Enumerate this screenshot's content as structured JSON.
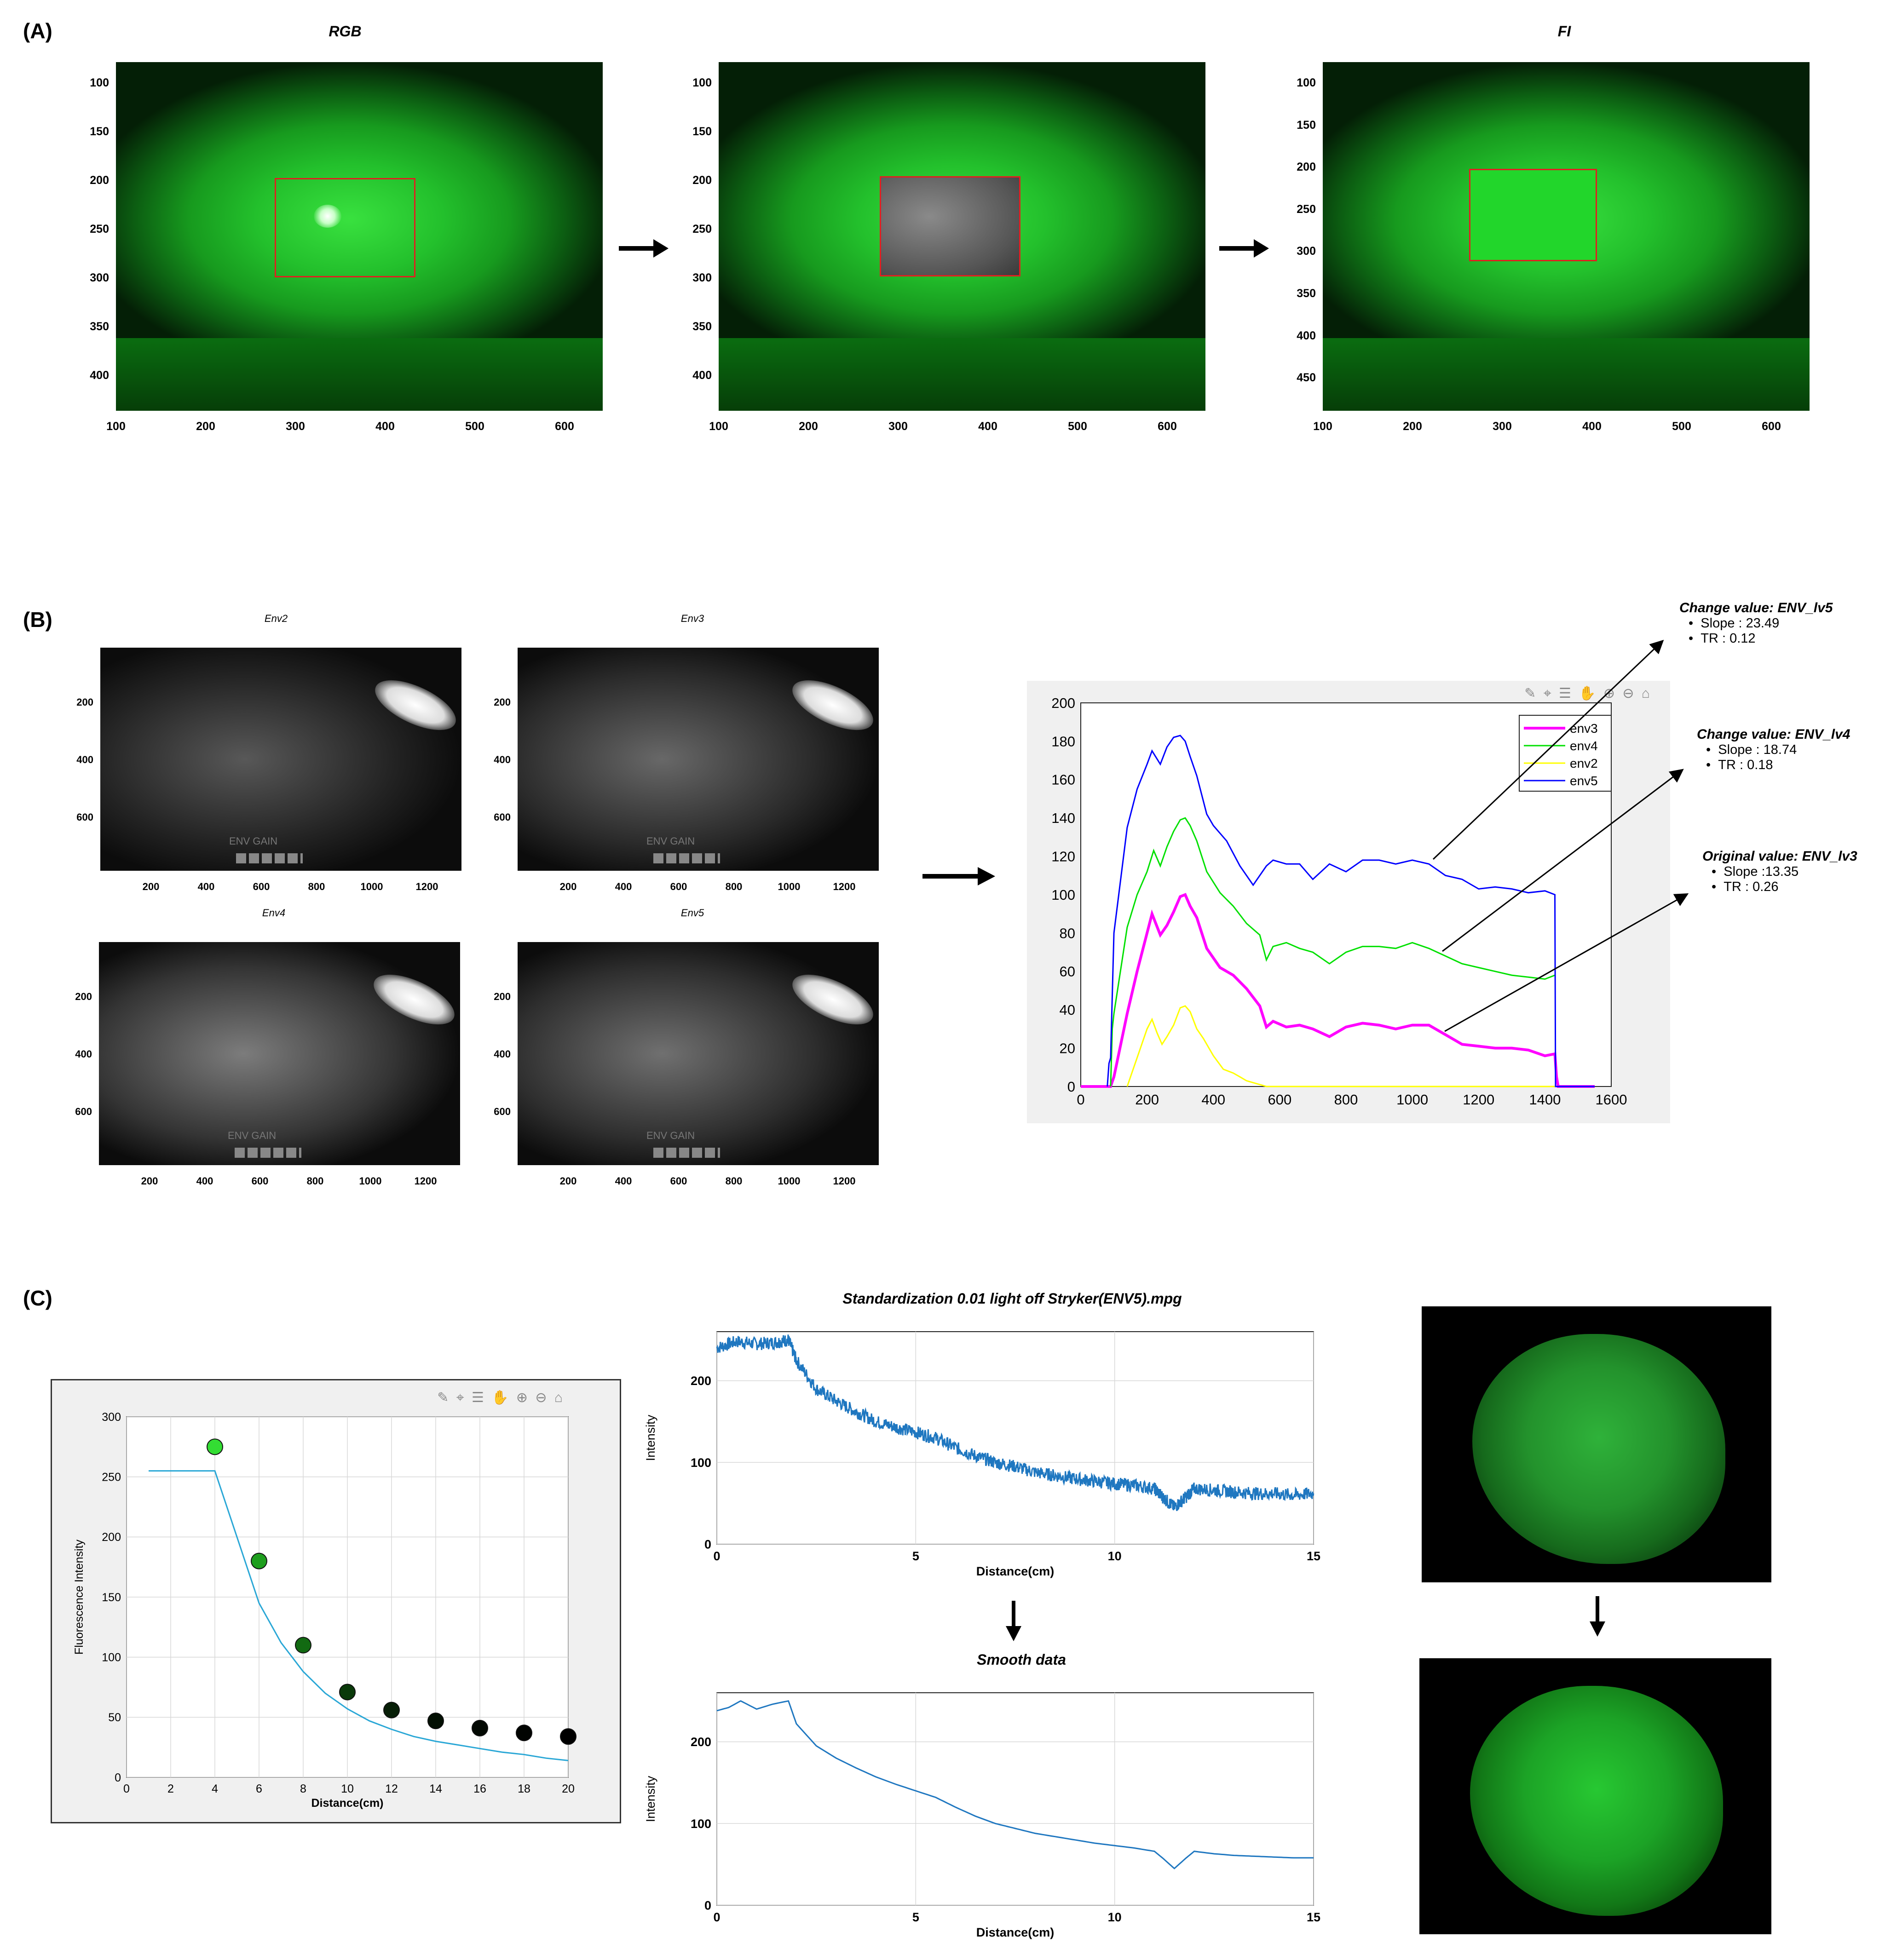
{
  "panels": {
    "a": {
      "label": "(A)",
      "images": [
        {
          "title": "RGB",
          "yticks": [
            "100",
            "150",
            "200",
            "250",
            "300",
            "350",
            "400"
          ],
          "xticks": [
            "100",
            "200",
            "300",
            "400",
            "500",
            "600"
          ]
        },
        {
          "title": "",
          "yticks": [
            "100",
            "150",
            "200",
            "250",
            "300",
            "350",
            "400"
          ],
          "xticks": [
            "100",
            "200",
            "300",
            "400",
            "500",
            "600"
          ]
        },
        {
          "title": "FI",
          "yticks": [
            "100",
            "150",
            "200",
            "250",
            "300",
            "350",
            "400",
            "450"
          ],
          "xticks": [
            "100",
            "200",
            "300",
            "400",
            "500",
            "600"
          ]
        }
      ]
    },
    "b": {
      "label": "(B)",
      "images": [
        {
          "title": "Env2",
          "yticks": [
            "200",
            "400",
            "600"
          ],
          "xticks": [
            "200",
            "400",
            "600",
            "800",
            "1000",
            "1200"
          ],
          "overlay": "ENV GAIN"
        },
        {
          "title": "Env3",
          "yticks": [
            "200",
            "400",
            "600"
          ],
          "xticks": [
            "200",
            "400",
            "600",
            "800",
            "1000",
            "1200"
          ],
          "overlay": "ENV GAIN"
        },
        {
          "title": "Env4",
          "yticks": [
            "200",
            "400",
            "600"
          ],
          "xticks": [
            "200",
            "400",
            "600",
            "800",
            "1000",
            "1200"
          ],
          "overlay": "ENV GAIN"
        },
        {
          "title": "Env5",
          "yticks": [
            "200",
            "400",
            "600"
          ],
          "xticks": [
            "200",
            "400",
            "600",
            "800",
            "1000",
            "1200"
          ],
          "overlay": "ENV GAIN"
        }
      ],
      "notes": [
        {
          "title": "Change value: ENV_lv5",
          "items": [
            "Slope : 23.49",
            "TR : 0.12"
          ]
        },
        {
          "title": "Change value: ENV_lv4",
          "items": [
            "Slope : 18.74",
            "TR : 0.18"
          ]
        },
        {
          "title": "Original value: ENV_lv3",
          "items": [
            "Slope :13.35",
            "TR : 0.26"
          ]
        }
      ]
    },
    "c": {
      "label": "(C)",
      "profile_title": "Standardization 0.01 light off Stryker(ENV5).mpg",
      "smooth_title": "Smooth data"
    }
  },
  "chart_data": [
    {
      "id": "env_profiles",
      "type": "line",
      "xlim": [
        0,
        1600
      ],
      "ylim": [
        0,
        200
      ],
      "xticks": [
        0,
        200,
        400,
        600,
        800,
        1000,
        1200,
        1400,
        1600
      ],
      "yticks": [
        0,
        20,
        40,
        60,
        80,
        100,
        120,
        140,
        160,
        180,
        200
      ],
      "legend": "top-right",
      "series": [
        {
          "name": "env3",
          "color": "#ff00ff",
          "x": [
            0,
            80,
            90,
            100,
            140,
            170,
            200,
            215,
            240,
            260,
            280,
            300,
            315,
            330,
            350,
            380,
            420,
            460,
            500,
            540,
            560,
            580,
            620,
            660,
            700,
            750,
            800,
            850,
            900,
            950,
            1000,
            1050,
            1100,
            1150,
            1200,
            1250,
            1300,
            1350,
            1400,
            1430,
            1435,
            1440,
            1550
          ],
          "y": [
            0,
            0,
            0,
            5,
            38,
            60,
            80,
            90,
            79,
            84,
            91,
            99,
            100,
            94,
            88,
            72,
            62,
            58,
            51,
            42,
            31,
            34,
            31,
            32,
            30,
            26,
            31,
            33,
            32,
            30,
            32,
            32,
            27,
            22,
            21,
            20,
            20,
            19,
            16,
            17,
            5,
            0,
            0
          ]
        },
        {
          "name": "env4",
          "color": "#00e000",
          "x": [
            90,
            95,
            100,
            140,
            170,
            200,
            220,
            240,
            260,
            280,
            300,
            315,
            330,
            350,
            380,
            420,
            460,
            500,
            540,
            560,
            580,
            620,
            660,
            700,
            750,
            800,
            850,
            900,
            950,
            1000,
            1050,
            1100,
            1150,
            1200,
            1250,
            1300,
            1350,
            1400,
            1430
          ],
          "y": [
            0,
            30,
            38,
            83,
            100,
            112,
            123,
            115,
            125,
            133,
            139,
            140,
            136,
            128,
            112,
            101,
            94,
            85,
            79,
            66,
            73,
            75,
            72,
            70,
            64,
            70,
            73,
            73,
            72,
            75,
            72,
            68,
            64,
            62,
            60,
            58,
            57,
            56,
            58
          ]
        },
        {
          "name": "env2",
          "color": "#ffff00",
          "x": [
            140,
            150,
            170,
            200,
            215,
            230,
            245,
            260,
            280,
            300,
            315,
            330,
            350,
            370,
            400,
            430,
            460,
            480,
            500,
            520,
            540,
            560,
            600,
            1000,
            1440
          ],
          "y": [
            0,
            5,
            15,
            30,
            35,
            28,
            22,
            26,
            32,
            41,
            42,
            39,
            30,
            25,
            16,
            9,
            7,
            5,
            3,
            2,
            1,
            0,
            0,
            0,
            0
          ]
        },
        {
          "name": "env5",
          "color": "#0000ff",
          "x": [
            80,
            85,
            90,
            100,
            140,
            170,
            200,
            215,
            240,
            260,
            280,
            300,
            315,
            330,
            350,
            380,
            400,
            440,
            480,
            520,
            560,
            580,
            620,
            660,
            700,
            750,
            800,
            850,
            900,
            950,
            1000,
            1050,
            1100,
            1150,
            1200,
            1250,
            1300,
            1350,
            1400,
            1430,
            1432,
            1440,
            1550
          ],
          "y": [
            0,
            12,
            15,
            80,
            135,
            155,
            168,
            175,
            168,
            177,
            182,
            183,
            180,
            172,
            162,
            142,
            136,
            128,
            115,
            105,
            115,
            118,
            116,
            116,
            108,
            116,
            112,
            118,
            118,
            116,
            118,
            116,
            110,
            108,
            103,
            104,
            103,
            101,
            102,
            100,
            0,
            0,
            0
          ]
        }
      ]
    },
    {
      "id": "fluorescence_vs_distance",
      "type": "scatter",
      "xlabel": "Distance(cm)",
      "ylabel": "Fluorescence Intensity",
      "xlim": [
        0,
        20
      ],
      "ylim": [
        0,
        300
      ],
      "xticks": [
        0,
        2,
        4,
        6,
        8,
        10,
        12,
        14,
        16,
        18,
        20
      ],
      "yticks": [
        0,
        50,
        100,
        150,
        200,
        250,
        300
      ],
      "points": {
        "x": [
          4,
          6,
          8,
          10,
          12,
          14,
          16,
          18,
          20
        ],
        "y": [
          275,
          180,
          110,
          71,
          56,
          47,
          41,
          37,
          34
        ]
      },
      "point_colors": [
        "#33dd33",
        "#1e9e1e",
        "#126a12",
        "#0a3a0a",
        "#071f07",
        "#031003",
        "#020802",
        "#010401",
        "#000000"
      ],
      "curve": {
        "x": [
          1,
          2,
          3,
          4,
          5,
          6,
          7,
          8,
          9,
          10,
          11,
          12,
          13,
          14,
          15,
          16,
          17,
          18,
          19,
          20
        ],
        "y": [
          255,
          255,
          255,
          255,
          200,
          145,
          112,
          88,
          70,
          57,
          47,
          40,
          34,
          30,
          27,
          24,
          21,
          19,
          16,
          14
        ],
        "color": "#2aa7d6"
      }
    },
    {
      "id": "raw_profile",
      "type": "line",
      "xlabel": "Distance(cm)",
      "ylabel": "Intensity",
      "xlim": [
        0,
        15
      ],
      "ylim": [
        0,
        260
      ],
      "xticks": [
        0,
        5,
        10,
        15
      ],
      "yticks": [
        0,
        100,
        200
      ],
      "noise": 8,
      "series": [
        {
          "name": "",
          "color": "#1f77c0",
          "x": [
            0,
            0.5,
            1,
            1.5,
            1.8,
            2,
            2.5,
            3,
            3.5,
            4,
            4.5,
            5,
            5.5,
            6,
            6.5,
            7,
            7.5,
            8,
            8.5,
            9,
            9.5,
            10,
            10.5,
            11,
            11.2,
            11.5,
            11.8,
            12,
            12.5,
            13,
            13.5,
            14,
            14.5,
            15
          ],
          "y": [
            240,
            248,
            245,
            247,
            250,
            225,
            190,
            175,
            162,
            150,
            143,
            137,
            130,
            118,
            108,
            100,
            95,
            88,
            84,
            80,
            77,
            74,
            72,
            68,
            58,
            45,
            58,
            68,
            66,
            64,
            62,
            62,
            60,
            62
          ]
        }
      ]
    },
    {
      "id": "smooth_profile",
      "type": "line",
      "xlabel": "Distance(cm)",
      "ylabel": "Intensity",
      "xlim": [
        0,
        15
      ],
      "ylim": [
        0,
        260
      ],
      "xticks": [
        0,
        5,
        10,
        15
      ],
      "yticks": [
        0,
        100,
        200
      ],
      "noise": 0,
      "series": [
        {
          "name": "",
          "color": "#1f77c0",
          "x": [
            0,
            0.3,
            0.6,
            1,
            1.4,
            1.8,
            2,
            2.5,
            3,
            3.5,
            4,
            4.5,
            5,
            5.5,
            6,
            6.5,
            7,
            7.5,
            8,
            8.5,
            9,
            9.5,
            10,
            10.5,
            11,
            11.2,
            11.5,
            11.8,
            12,
            12.5,
            13,
            13.5,
            14,
            14.5,
            15
          ],
          "y": [
            238,
            242,
            250,
            240,
            246,
            250,
            222,
            195,
            180,
            168,
            157,
            148,
            140,
            132,
            120,
            109,
            100,
            94,
            88,
            84,
            80,
            76,
            73,
            70,
            66,
            58,
            45,
            58,
            66,
            63,
            61,
            60,
            59,
            58,
            58
          ]
        }
      ]
    }
  ]
}
